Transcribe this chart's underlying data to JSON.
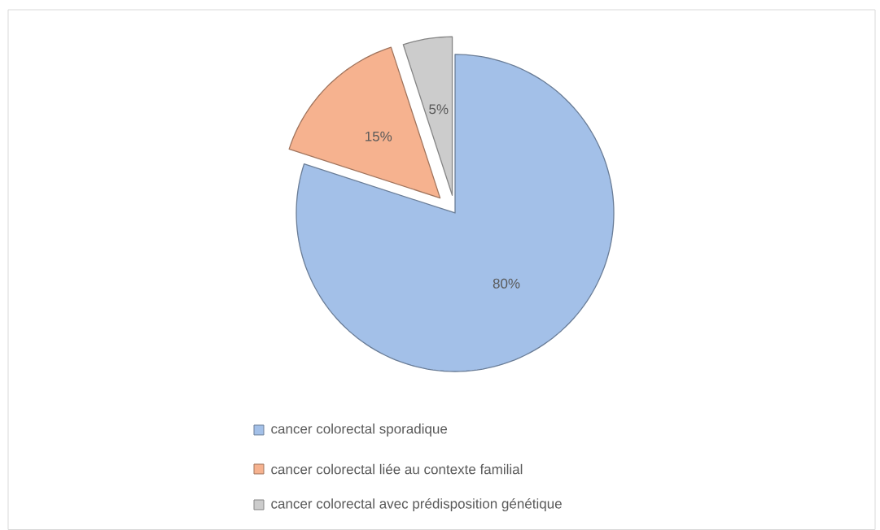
{
  "chart_data": {
    "type": "pie",
    "categories": [
      "cancer colorectal sporadique",
      "cancer colorectal liée au contexte familial",
      "cancer colorectal avec prédisposition génétique"
    ],
    "values": [
      80,
      15,
      5
    ],
    "colors": [
      "#a3c0e8",
      "#f6b28f",
      "#cccccc"
    ],
    "value_labels": [
      "80%",
      "15%",
      "5%"
    ],
    "legend": "bottom"
  }
}
